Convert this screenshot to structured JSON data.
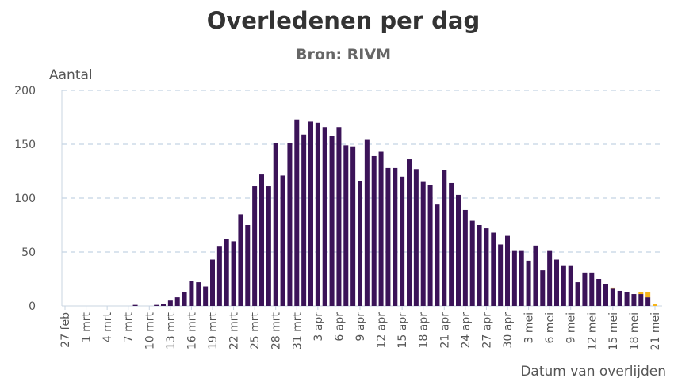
{
  "chart_data": {
    "type": "bar",
    "stacked": true,
    "title": "Overledenen per dag",
    "subtitle": "Bron: RIVM",
    "ylabel": "Aantal",
    "xlabel": "Datum van overlijden",
    "ylim": [
      0,
      200
    ],
    "yticks": [
      0,
      50,
      100,
      150,
      200
    ],
    "grid": true,
    "categories": [
      "27 feb",
      "28 feb",
      "29 feb",
      "1 mrt",
      "2 mrt",
      "3 mrt",
      "4 mrt",
      "5 mrt",
      "6 mrt",
      "7 mrt",
      "8 mrt",
      "9 mrt",
      "10 mrt",
      "11 mrt",
      "12 mrt",
      "13 mrt",
      "14 mrt",
      "15 mrt",
      "16 mrt",
      "17 mrt",
      "18 mrt",
      "19 mrt",
      "20 mrt",
      "21 mrt",
      "22 mrt",
      "23 mrt",
      "24 mrt",
      "25 mrt",
      "26 mrt",
      "27 mrt",
      "28 mrt",
      "29 mrt",
      "30 mrt",
      "31 mrt",
      "1 apr",
      "2 apr",
      "3 apr",
      "4 apr",
      "5 apr",
      "6 apr",
      "7 apr",
      "8 apr",
      "9 apr",
      "10 apr",
      "11 apr",
      "12 apr",
      "13 apr",
      "14 apr",
      "15 apr",
      "16 apr",
      "17 apr",
      "18 apr",
      "19 apr",
      "20 apr",
      "21 apr",
      "22 apr",
      "23 apr",
      "24 apr",
      "25 apr",
      "26 apr",
      "27 apr",
      "28 apr",
      "29 apr",
      "30 apr",
      "1 mei",
      "2 mei",
      "3 mei",
      "4 mei",
      "5 mei",
      "6 mei",
      "7 mei",
      "8 mei",
      "9 mei",
      "10 mei",
      "11 mei",
      "12 mei",
      "13 mei",
      "14 mei",
      "15 mei",
      "16 mei",
      "17 mei",
      "18 mei",
      "19 mei",
      "20 mei",
      "21 mei"
    ],
    "tick_labels": [
      "27 feb",
      "1 mrt",
      "4 mrt",
      "7 mrt",
      "10 mrt",
      "13 mrt",
      "16 mrt",
      "19 mrt",
      "22 mrt",
      "25 mrt",
      "28 mrt",
      "31 mrt",
      "3 apr",
      "6 apr",
      "9 apr",
      "12 apr",
      "15 apr",
      "18 apr",
      "21 apr",
      "24 apr",
      "27 apr",
      "30 apr",
      "3 mei",
      "6 mei",
      "9 mei",
      "12 mei",
      "15 mei",
      "18 mei",
      "21 mei"
    ],
    "series": [
      {
        "color": "#3b1358",
        "values": [
          0,
          0,
          0,
          0,
          0,
          0,
          0,
          0,
          0,
          0,
          1,
          0,
          0,
          1,
          2,
          5,
          8,
          13,
          23,
          22,
          18,
          43,
          55,
          62,
          60,
          85,
          75,
          111,
          122,
          111,
          151,
          121,
          151,
          173,
          159,
          171,
          170,
          166,
          158,
          166,
          149,
          148,
          116,
          154,
          139,
          143,
          128,
          128,
          120,
          136,
          127,
          115,
          112,
          94,
          126,
          114,
          103,
          89,
          79,
          75,
          72,
          68,
          57,
          65,
          51,
          51,
          42,
          56,
          33,
          51,
          43,
          37,
          37,
          22,
          31,
          31,
          25,
          20,
          16,
          14,
          13,
          11,
          11,
          8,
          0
        ]
      },
      {
        "color": "#f5b41a",
        "values": [
          0,
          0,
          0,
          0,
          0,
          0,
          0,
          0,
          0,
          0,
          0,
          0,
          0,
          0,
          0,
          0,
          0,
          0,
          0,
          0,
          0,
          0,
          0,
          0,
          0,
          0,
          0,
          0,
          0,
          0,
          0,
          0,
          0,
          0,
          0,
          0,
          0,
          0,
          0,
          0,
          0,
          0,
          0,
          0,
          0,
          0,
          0,
          0,
          0,
          0,
          0,
          0,
          0,
          0,
          0,
          0,
          0,
          0,
          0,
          0,
          0,
          0,
          0,
          0,
          0,
          0,
          0,
          0,
          0,
          0,
          0,
          0,
          0,
          0,
          0,
          0,
          0,
          0,
          1,
          0,
          0,
          0,
          2,
          5,
          2
        ]
      }
    ]
  }
}
